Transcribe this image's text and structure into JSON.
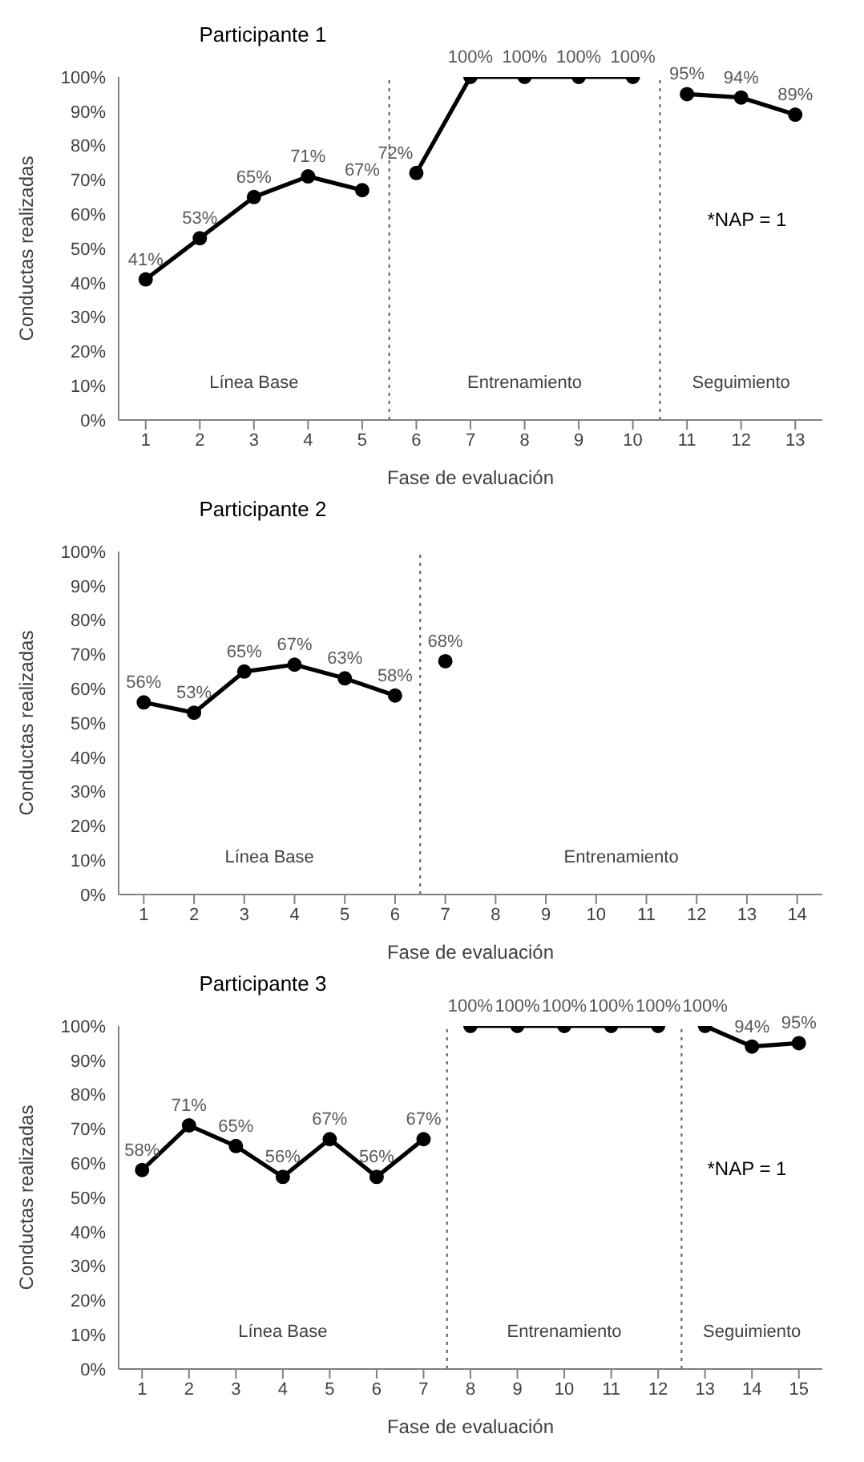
{
  "chart_data": [
    {
      "type": "line",
      "title": "Participante 1",
      "xlabel": "Fase de evaluación",
      "ylabel": "Conductas realizadas",
      "xlim": [
        0.5,
        13.5
      ],
      "xticks": [
        1,
        2,
        3,
        4,
        5,
        6,
        7,
        8,
        9,
        10,
        11,
        12,
        13
      ],
      "ylim": [
        0,
        100
      ],
      "yticks": [
        {
          "value": 0,
          "label": "0%"
        },
        {
          "value": 10,
          "label": "10%"
        },
        {
          "value": 20,
          "label": "20%"
        },
        {
          "value": 30,
          "label": "30%"
        },
        {
          "value": 40,
          "label": "40%"
        },
        {
          "value": 50,
          "label": "50%"
        },
        {
          "value": 60,
          "label": "60%"
        },
        {
          "value": 70,
          "label": "70%"
        },
        {
          "value": 80,
          "label": "80%"
        },
        {
          "value": 90,
          "label": "90%"
        },
        {
          "value": 100,
          "label": "100%"
        }
      ],
      "marker": "circle",
      "grid": false,
      "series": [
        {
          "color": "#000000",
          "x": [
            1,
            2,
            3,
            4,
            5
          ],
          "values": [
            41,
            53,
            65,
            71,
            67
          ],
          "value_labels": [
            "41%",
            "53%",
            "65%",
            "71%",
            "67%"
          ]
        },
        {
          "color": "#000000",
          "x": [
            6,
            7,
            8,
            9,
            10
          ],
          "values": [
            72,
            100,
            100,
            100,
            100
          ],
          "value_labels": [
            "72%",
            "100%",
            "100%",
            "100%",
            "100%"
          ]
        },
        {
          "color": "#000000",
          "x": [
            11,
            12,
            13
          ],
          "values": [
            95,
            94,
            89
          ],
          "value_labels": [
            "95%",
            "94%",
            "89%"
          ]
        }
      ],
      "ref_lines": [
        {
          "axis": "x",
          "value": 5.5,
          "line_style": "dotted",
          "color": "#595959"
        },
        {
          "axis": "x",
          "value": 10.5,
          "line_style": "dotted",
          "color": "#595959"
        }
      ],
      "annotations": [
        "Línea Base",
        "Entrenamiento",
        "Seguimiento",
        "*NAP = 1"
      ]
    },
    {
      "type": "line",
      "title": "Participante 2",
      "xlabel": "Fase de evaluación",
      "ylabel": "Conductas realizadas",
      "xlim": [
        0.5,
        14.5
      ],
      "xticks": [
        1,
        2,
        3,
        4,
        5,
        6,
        7,
        8,
        9,
        10,
        11,
        12,
        13,
        14
      ],
      "ylim": [
        0,
        100
      ],
      "yticks": [
        {
          "value": 0,
          "label": "0%"
        },
        {
          "value": 10,
          "label": "10%"
        },
        {
          "value": 20,
          "label": "20%"
        },
        {
          "value": 30,
          "label": "30%"
        },
        {
          "value": 40,
          "label": "40%"
        },
        {
          "value": 50,
          "label": "50%"
        },
        {
          "value": 60,
          "label": "60%"
        },
        {
          "value": 70,
          "label": "70%"
        },
        {
          "value": 80,
          "label": "80%"
        },
        {
          "value": 90,
          "label": "90%"
        },
        {
          "value": 100,
          "label": "100%"
        }
      ],
      "marker": "circle",
      "grid": false,
      "series": [
        {
          "color": "#000000",
          "x": [
            1,
            2,
            3,
            4,
            5,
            6
          ],
          "values": [
            56,
            53,
            65,
            67,
            63,
            58
          ],
          "value_labels": [
            "56%",
            "53%",
            "65%",
            "67%",
            "63%",
            "58%"
          ]
        },
        {
          "color": "#000000",
          "x": [
            7
          ],
          "values": [
            68
          ],
          "value_labels": [
            "68%"
          ]
        }
      ],
      "ref_lines": [
        {
          "axis": "x",
          "value": 6.5,
          "line_style": "dotted",
          "color": "#595959"
        }
      ],
      "annotations": [
        "Línea Base",
        "Entrenamiento"
      ]
    },
    {
      "type": "line",
      "title": "Participante 3",
      "xlabel": "Fase de evaluación",
      "ylabel": "Conductas realizadas",
      "xlim": [
        0.5,
        15.5
      ],
      "xticks": [
        1,
        2,
        3,
        4,
        5,
        6,
        7,
        8,
        9,
        10,
        11,
        12,
        13,
        14,
        15
      ],
      "ylim": [
        0,
        100
      ],
      "yticks": [
        {
          "value": 0,
          "label": "0%"
        },
        {
          "value": 10,
          "label": "10%"
        },
        {
          "value": 20,
          "label": "20%"
        },
        {
          "value": 30,
          "label": "30%"
        },
        {
          "value": 40,
          "label": "40%"
        },
        {
          "value": 50,
          "label": "50%"
        },
        {
          "value": 60,
          "label": "60%"
        },
        {
          "value": 70,
          "label": "70%"
        },
        {
          "value": 80,
          "label": "80%"
        },
        {
          "value": 90,
          "label": "90%"
        },
        {
          "value": 100,
          "label": "100%"
        }
      ],
      "marker": "circle",
      "grid": false,
      "series": [
        {
          "color": "#000000",
          "x": [
            1,
            2,
            3,
            4,
            5,
            6,
            7
          ],
          "values": [
            58,
            71,
            65,
            56,
            67,
            56,
            67
          ],
          "value_labels": [
            "58%",
            "71%",
            "65%",
            "56%",
            "67%",
            "56%",
            "67%"
          ]
        },
        {
          "color": "#000000",
          "x": [
            8,
            9,
            10,
            11,
            12
          ],
          "values": [
            100,
            100,
            100,
            100,
            100
          ],
          "value_labels": [
            "100%",
            "100%",
            "100%",
            "100%",
            "100%"
          ]
        },
        {
          "color": "#000000",
          "x": [
            13,
            14,
            15
          ],
          "values": [
            100,
            94,
            95
          ],
          "value_labels": [
            "100%",
            "94%",
            "95%"
          ]
        }
      ],
      "ref_lines": [
        {
          "axis": "x",
          "value": 7.5,
          "line_style": "dotted",
          "color": "#595959"
        },
        {
          "axis": "x",
          "value": 12.5,
          "line_style": "dotted",
          "color": "#595959"
        }
      ],
      "annotations": [
        "Línea Base",
        "Entrenamiento",
        "Seguimiento",
        "*NAP = 1"
      ]
    }
  ]
}
